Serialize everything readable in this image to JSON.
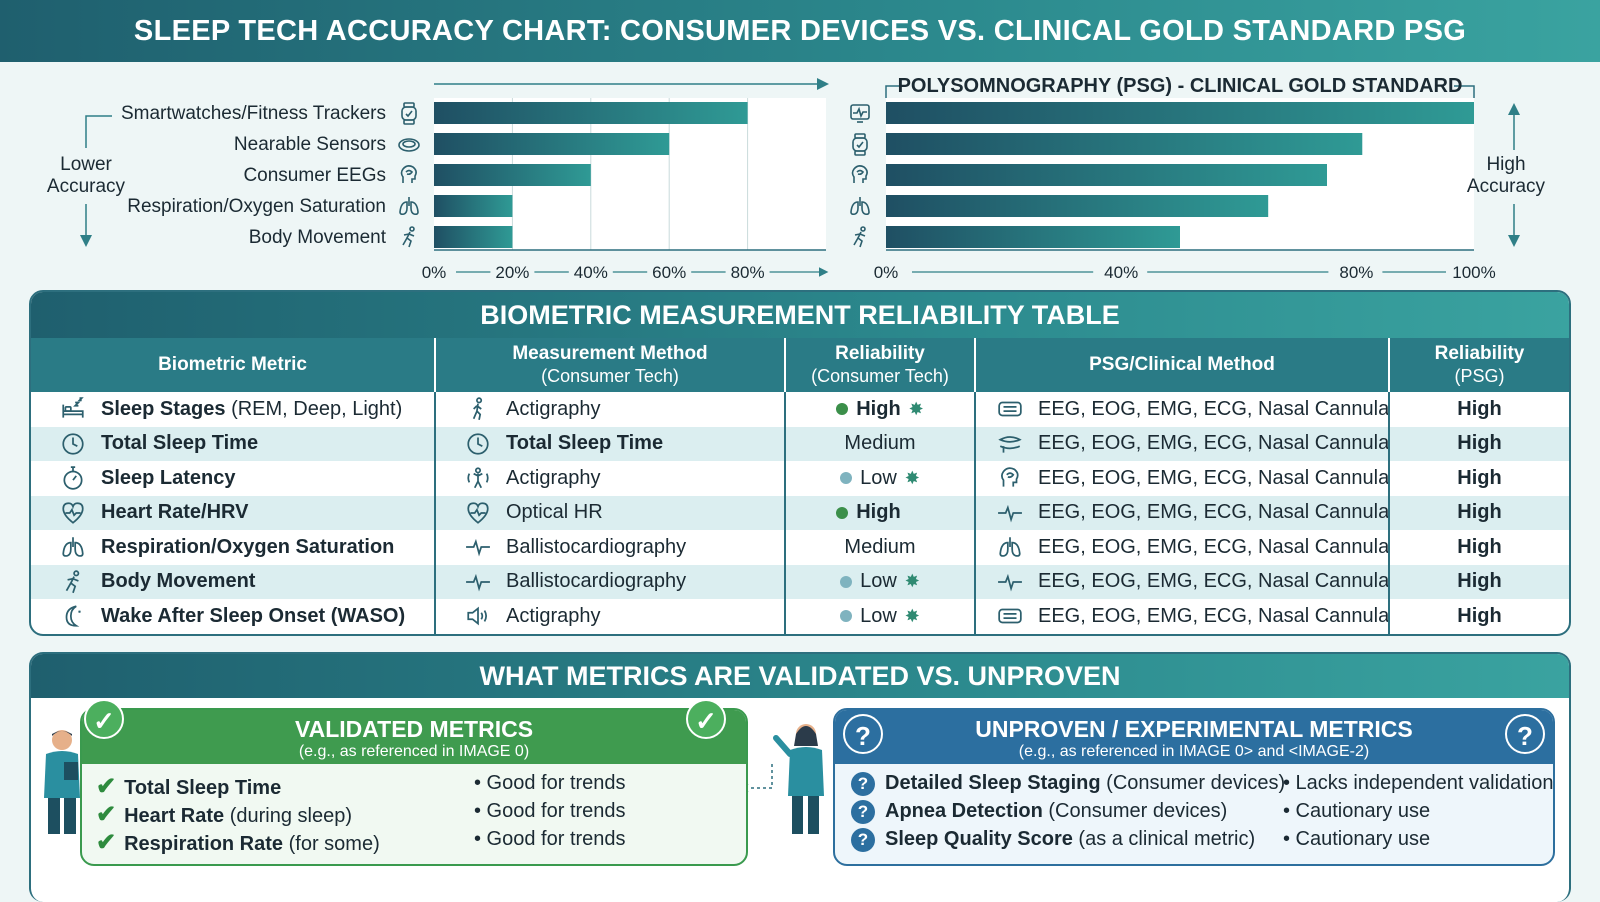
{
  "title": "SLEEP TECH ACCURACY CHART: CONSUMER DEVICES VS. CLINICAL GOLD STANDARD PSG",
  "chart_data": [
    {
      "type": "bar",
      "orientation": "horizontal",
      "side_label": "Lower Accuracy",
      "categories": [
        "Smartwatches/Fitness Trackers",
        "Nearable Sensors",
        "Consumer EEGs",
        "Respiration/Oxygen Saturation",
        "Body Movement"
      ],
      "category_icons": [
        "watch-icon",
        "ring-icon",
        "head-icon",
        "lungs-icon",
        "runner-icon"
      ],
      "values": [
        80,
        60,
        40,
        20,
        20
      ],
      "xlim": [
        0,
        100
      ],
      "xticks": [
        "0%",
        "20%",
        "40%",
        "60%",
        "80%"
      ]
    },
    {
      "type": "bar",
      "orientation": "horizontal",
      "title": "POLYSOMNOGRAPHY (PSG) - CLINICAL GOLD STANDARD",
      "side_label": "High Accuracy",
      "category_icons": [
        "monitor-icon",
        "watch-icon",
        "head-icon",
        "lungs-icon",
        "runner-icon"
      ],
      "values": [
        100,
        81,
        75,
        65,
        50
      ],
      "xlim": [
        0,
        100
      ],
      "xticks": [
        "0%",
        "40%",
        "80%",
        "100%"
      ]
    }
  ],
  "table": {
    "title": "BIOMETRIC MEASUREMENT RELIABILITY TABLE",
    "headers": [
      {
        "main": "Biometric Metric",
        "sub": ""
      },
      {
        "main": "Measurement Method",
        "sub": "(Consumer Tech)"
      },
      {
        "main": "Reliability",
        "sub": "(Consumer Tech)"
      },
      {
        "main": "PSG/Clinical Method",
        "sub": ""
      },
      {
        "main": "Reliability",
        "sub": "(PSG)"
      }
    ],
    "rows": [
      {
        "metric": "Sleep Stages",
        "metric_extra": " (REM, Deep, Light)",
        "metric_icon": "bed-icon",
        "method": "Actigraphy",
        "method_bold": false,
        "method_icon": "walker-icon",
        "rel": "High",
        "rel_level": "high",
        "rel_star": true,
        "psg": "EEG, EOG, EMG, ECG, Nasal Cannula",
        "psg_icon": "device-icon",
        "psg_rel": "High"
      },
      {
        "metric": "Total Sleep Time",
        "metric_extra": "",
        "metric_icon": "clock-icon",
        "method": "Total Sleep Time",
        "method_bold": true,
        "method_icon": "clock-icon",
        "rel": "Medium",
        "rel_level": "medium",
        "rel_star": false,
        "psg": "EEG, EOG, EMG, ECG, Nasal Cannula",
        "psg_icon": "cannula-icon",
        "psg_rel": "High"
      },
      {
        "metric": "Sleep Latency",
        "metric_extra": "",
        "metric_icon": "stopwatch-icon",
        "method": "Actigraphy",
        "method_bold": false,
        "method_icon": "motion-icon",
        "rel": "Low",
        "rel_level": "low",
        "rel_star": true,
        "psg": "EEG, EOG, EMG, ECG, Nasal Cannula",
        "psg_icon": "head-icon",
        "psg_rel": "High"
      },
      {
        "metric": "Heart Rate/HRV",
        "metric_extra": "",
        "metric_icon": "heart-icon",
        "method": "Optical HR",
        "method_bold": false,
        "method_icon": "heart-icon",
        "rel": "High",
        "rel_level": "high",
        "rel_star": false,
        "psg": "EEG, EOG, EMG, ECG, Nasal Cannula",
        "psg_icon": "pulse-icon",
        "psg_rel": "High"
      },
      {
        "metric": "Respiration/Oxygen Saturation",
        "metric_extra": "",
        "metric_icon": "lungs-icon",
        "method": "Ballistocardiography",
        "method_bold": false,
        "method_icon": "pulse-icon",
        "rel": "Medium",
        "rel_level": "medium",
        "rel_star": false,
        "psg": "EEG, EOG, EMG, ECG, Nasal Cannula",
        "psg_icon": "lungs-icon",
        "psg_rel": "High"
      },
      {
        "metric": "Body Movement",
        "metric_extra": "",
        "metric_icon": "runner-icon",
        "method": "Ballistocardiography",
        "method_bold": false,
        "method_icon": "pulse-icon",
        "rel": "Low",
        "rel_level": "low",
        "rel_star": true,
        "psg": "EEG, EOG, EMG, ECG, Nasal Cannula",
        "psg_icon": "pulse-icon",
        "psg_rel": "High"
      },
      {
        "metric": "Wake After Sleep Onset (WASO)",
        "metric_extra": "",
        "metric_icon": "moon-icon",
        "method": "Actigraphy",
        "method_bold": false,
        "method_icon": "speaker-icon",
        "rel": "Low",
        "rel_level": "low",
        "rel_star": true,
        "psg": "EEG, EOG, EMG, ECG, Nasal Cannula",
        "psg_icon": "device-icon",
        "psg_rel": "High"
      }
    ]
  },
  "validation": {
    "title": "WHAT METRICS ARE VALIDATED VS. UNPROVEN",
    "validated": {
      "title": "VALIDATED METRICS",
      "subtitle": "(e.g., as referenced in IMAGE 0)",
      "items": [
        {
          "name": "Total Sleep Time",
          "extra": "",
          "note": "• Good for trends"
        },
        {
          "name": "Heart Rate",
          "extra": " (during sleep)",
          "note": "• Good for trends"
        },
        {
          "name": "Respiration Rate",
          "extra": " (for some)",
          "note": "• Good for trends"
        }
      ]
    },
    "unproven": {
      "title": "UNPROVEN / EXPERIMENTAL METRICS",
      "subtitle": "(e.g., as referenced in IMAGE 0> and <IMAGE-2)",
      "items": [
        {
          "name": "Detailed Sleep Staging",
          "extra": " (Consumer devices)",
          "note": "• Lacks independent validation"
        },
        {
          "name": "Apnea Detection",
          "extra": " (Consumer devices)",
          "note": "• Cautionary use"
        },
        {
          "name": "Sleep Quality Score",
          "extra": " (as a clinical metric)",
          "note": "• Cautionary use"
        }
      ]
    }
  },
  "colors": {
    "bar_dark": "#1f4f63",
    "bar_light": "#2f9a95",
    "header": "#2a7b86",
    "validated": "#3f9b4f",
    "unproven": "#2c6fa0",
    "dot_high": "#3b8f4a",
    "dot_low": "#7fb3bf"
  }
}
